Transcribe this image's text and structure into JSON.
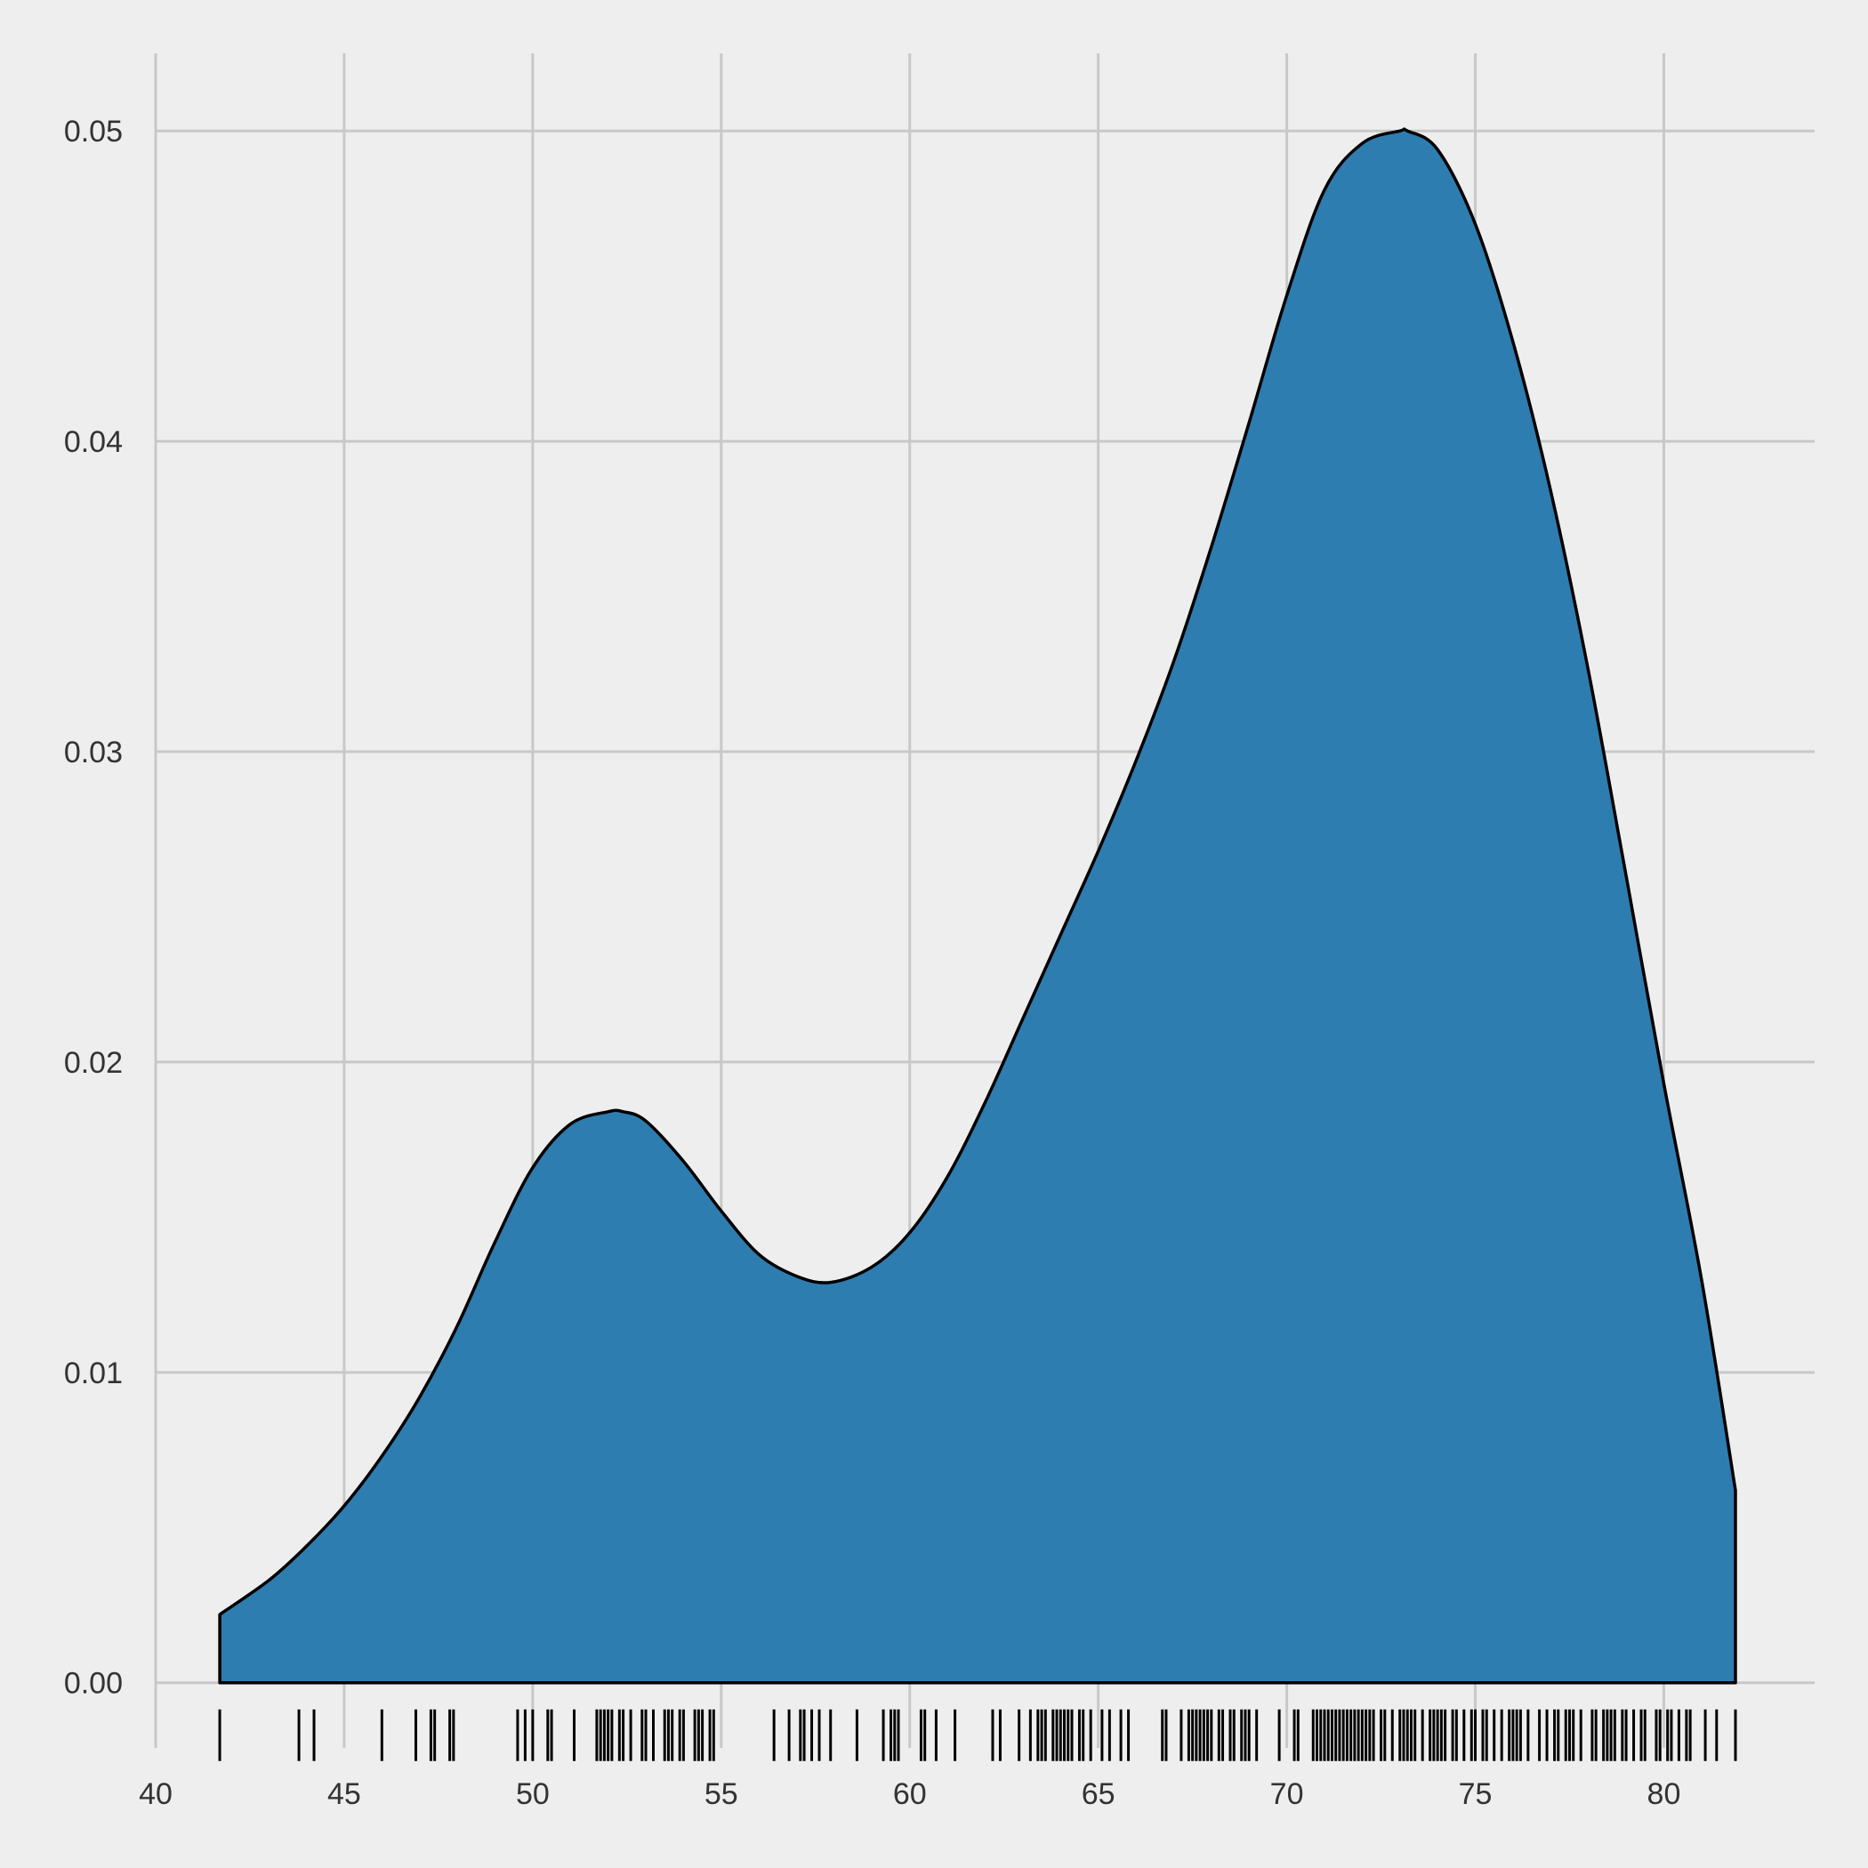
{
  "chart_data": {
    "type": "area",
    "title": "",
    "xlabel": "",
    "ylabel": "",
    "xlim": [
      40,
      84
    ],
    "ylim": [
      -0.0021,
      0.0525
    ],
    "grid": true,
    "legend": "none",
    "colors": {
      "background": "#eeeeee",
      "grid": "#c8c8c8",
      "fill": "#2e7db0",
      "outline": "#000000",
      "tick_text": "#333333"
    },
    "x_ticks": [
      {
        "value": 40,
        "label": "40"
      },
      {
        "value": 45,
        "label": "45"
      },
      {
        "value": 50,
        "label": "50"
      },
      {
        "value": 55,
        "label": "55"
      },
      {
        "value": 60,
        "label": "60"
      },
      {
        "value": 65,
        "label": "65"
      },
      {
        "value": 70,
        "label": "70"
      },
      {
        "value": 75,
        "label": "75"
      },
      {
        "value": 80,
        "label": "80"
      }
    ],
    "y_ticks": [
      {
        "value": 0.0,
        "label": "0.00"
      },
      {
        "value": 0.01,
        "label": "0.01"
      },
      {
        "value": 0.02,
        "label": "0.02"
      },
      {
        "value": 0.03,
        "label": "0.03"
      },
      {
        "value": 0.04,
        "label": "0.04"
      },
      {
        "value": 0.05,
        "label": "0.05"
      }
    ],
    "density": {
      "x": [
        41.7,
        43,
        44,
        45,
        46,
        47,
        48,
        49,
        50,
        51,
        52,
        52.4,
        53,
        54,
        55,
        56,
        57,
        57.9,
        59,
        60,
        61,
        62,
        63,
        64,
        65,
        66,
        67,
        68,
        69,
        70,
        71,
        72,
        73,
        73.2,
        74,
        75,
        76,
        77,
        78,
        79,
        80,
        81,
        81.9
      ],
      "y": [
        0.0022,
        0.0033,
        0.0044,
        0.0057,
        0.0073,
        0.0092,
        0.0115,
        0.0142,
        0.0166,
        0.018,
        0.0184,
        0.0184,
        0.0181,
        0.0168,
        0.0152,
        0.0138,
        0.0131,
        0.0129,
        0.0134,
        0.0145,
        0.0163,
        0.0187,
        0.0214,
        0.0241,
        0.0268,
        0.0297,
        0.0329,
        0.0366,
        0.0406,
        0.0447,
        0.0481,
        0.0496,
        0.05,
        0.05,
        0.0494,
        0.047,
        0.0432,
        0.0384,
        0.0326,
        0.026,
        0.0193,
        0.013,
        0.0062
      ]
    },
    "rug": [
      41.7,
      43.8,
      44.2,
      46.0,
      46.9,
      47.3,
      47.4,
      47.8,
      47.9,
      49.6,
      49.8,
      50.0,
      50.4,
      50.5,
      51.1,
      51.7,
      51.8,
      51.9,
      52.0,
      52.1,
      52.3,
      52.4,
      52.6,
      52.9,
      53.0,
      53.2,
      53.5,
      53.6,
      53.7,
      53.9,
      54.0,
      54.3,
      54.4,
      54.5,
      54.7,
      54.8,
      56.4,
      56.8,
      57.1,
      57.2,
      57.4,
      57.6,
      57.9,
      58.6,
      59.3,
      59.5,
      59.6,
      59.7,
      60.3,
      60.4,
      60.7,
      61.2,
      62.2,
      62.4,
      62.9,
      63.2,
      63.4,
      63.5,
      63.6,
      63.8,
      63.9,
      64.0,
      64.1,
      64.2,
      64.3,
      64.5,
      64.6,
      64.8,
      65.1,
      65.3,
      65.6,
      65.8,
      66.7,
      66.8,
      67.2,
      67.4,
      67.5,
      67.6,
      67.7,
      67.8,
      67.9,
      68.0,
      68.2,
      68.3,
      68.5,
      68.6,
      68.8,
      68.9,
      69.0,
      69.2,
      69.8,
      70.2,
      70.3,
      70.7,
      70.8,
      70.9,
      71.0,
      71.1,
      71.2,
      71.3,
      71.4,
      71.5,
      71.6,
      71.7,
      71.8,
      71.9,
      72.0,
      72.1,
      72.2,
      72.3,
      72.5,
      72.6,
      72.8,
      73.0,
      73.1,
      73.2,
      73.3,
      73.4,
      73.6,
      73.8,
      73.9,
      74.0,
      74.1,
      74.2,
      74.4,
      74.5,
      74.7,
      74.9,
      75.0,
      75.2,
      75.3,
      75.5,
      75.7,
      75.9,
      76.0,
      76.1,
      76.2,
      76.4,
      76.7,
      76.9,
      77.1,
      77.2,
      77.4,
      77.5,
      77.6,
      77.8,
      78.1,
      78.2,
      78.4,
      78.5,
      78.6,
      78.7,
      78.9,
      79.0,
      79.2,
      79.4,
      79.5,
      79.8,
      79.9,
      80.1,
      80.2,
      80.4,
      80.6,
      80.7,
      81.1,
      81.4,
      81.9
    ]
  }
}
